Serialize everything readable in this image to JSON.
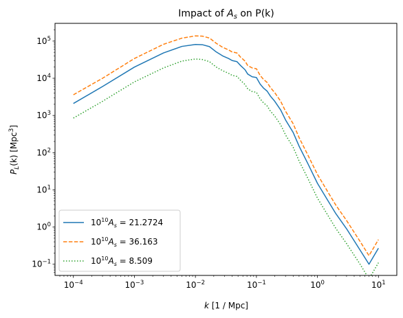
{
  "chart_data": {
    "type": "line",
    "title": {
      "prefix": "Impact of ",
      "sym": "A",
      "sub": "s",
      "suffix": " on P(k)"
    },
    "xlabel": {
      "sym": "k",
      "rest": " [1 / Mpc]"
    },
    "ylabel": {
      "sym": "P",
      "sub": "L",
      "mid": "(k) [Mpc",
      "sup": "3",
      "end": "]"
    },
    "x_scale": "log",
    "y_scale": "log",
    "xlim": [
      5e-05,
      20
    ],
    "ylim": [
      0.05,
      300000
    ],
    "x_ticks": [
      {
        "value": 0.0001,
        "base": "10",
        "exp": "−4"
      },
      {
        "value": 0.001,
        "base": "10",
        "exp": "−3"
      },
      {
        "value": 0.01,
        "base": "10",
        "exp": "−2"
      },
      {
        "value": 0.1,
        "base": "10",
        "exp": "−1"
      },
      {
        "value": 1,
        "base": "10",
        "exp": "0"
      },
      {
        "value": 10,
        "base": "10",
        "exp": "1"
      }
    ],
    "y_ticks": [
      {
        "value": 0.1,
        "base": "10",
        "exp": "−1"
      },
      {
        "value": 1,
        "base": "10",
        "exp": "0"
      },
      {
        "value": 10,
        "base": "10",
        "exp": "1"
      },
      {
        "value": 100,
        "base": "10",
        "exp": "2"
      },
      {
        "value": 1000,
        "base": "10",
        "exp": "3"
      },
      {
        "value": 10000,
        "base": "10",
        "exp": "4"
      },
      {
        "value": 100000,
        "base": "10",
        "exp": "5"
      }
    ],
    "grid": false,
    "legend_position": "lower-left",
    "series": [
      {
        "name": {
          "pre": "10",
          "sup": "10",
          "sym": "A",
          "sub": "s",
          "post": " = 21.2724"
        },
        "color": "#1f77b4",
        "dash": "solid",
        "x": [
          0.0001,
          0.0003,
          0.001,
          0.003,
          0.006,
          0.01,
          0.013,
          0.017,
          0.022,
          0.028,
          0.035,
          0.04,
          0.048,
          0.055,
          0.065,
          0.072,
          0.085,
          0.1,
          0.115,
          0.13,
          0.15,
          0.17,
          0.2,
          0.25,
          0.3,
          0.4,
          0.5,
          0.7,
          1,
          1.5,
          2,
          3,
          5,
          7,
          10
        ],
        "y": [
          2100,
          6000,
          20000,
          48000,
          72000,
          81000,
          80000,
          71000,
          51000,
          40000,
          34000,
          30000,
          28000,
          22000,
          17000,
          13000,
          11000,
          10500,
          7000,
          5500,
          4500,
          3300,
          2400,
          1400,
          760,
          350,
          150,
          50,
          15,
          5,
          2.3,
          0.9,
          0.24,
          0.1,
          0.27
        ]
      },
      {
        "name": {
          "pre": "10",
          "sup": "10",
          "sym": "A",
          "sub": "s",
          "post": " = 36.163"
        },
        "color": "#ff7f0e",
        "dash": "dashed",
        "x": [
          0.0001,
          0.0003,
          0.001,
          0.003,
          0.006,
          0.01,
          0.013,
          0.017,
          0.022,
          0.028,
          0.035,
          0.04,
          0.048,
          0.055,
          0.065,
          0.072,
          0.085,
          0.1,
          0.115,
          0.13,
          0.15,
          0.17,
          0.2,
          0.25,
          0.3,
          0.4,
          0.5,
          0.7,
          1,
          1.5,
          2,
          3,
          5,
          7,
          10
        ],
        "y": [
          3600,
          10000,
          34000,
          82000,
          120000,
          138000,
          136000,
          121000,
          87000,
          68000,
          58000,
          51000,
          48000,
          37000,
          29000,
          22000,
          19000,
          18000,
          12000,
          9400,
          7700,
          5600,
          4100,
          2400,
          1300,
          600,
          255,
          85,
          26,
          8.5,
          3.9,
          1.5,
          0.41,
          0.17,
          0.46
        ]
      },
      {
        "name": {
          "pre": "10",
          "sup": "10",
          "sym": "A",
          "sub": "s",
          "post": " = 8.509"
        },
        "color": "#2ca02c",
        "dash": "dotted",
        "x": [
          0.0001,
          0.0003,
          0.001,
          0.003,
          0.006,
          0.01,
          0.013,
          0.017,
          0.022,
          0.028,
          0.035,
          0.04,
          0.048,
          0.055,
          0.065,
          0.072,
          0.085,
          0.1,
          0.115,
          0.13,
          0.15,
          0.17,
          0.2,
          0.25,
          0.3,
          0.4,
          0.5,
          0.7,
          1,
          1.5,
          2,
          3,
          5,
          7,
          10
        ],
        "y": [
          850,
          2400,
          8000,
          19000,
          29000,
          33000,
          32000,
          28000,
          20000,
          16000,
          13600,
          12000,
          11200,
          8800,
          6800,
          5200,
          4400,
          4200,
          2800,
          2200,
          1800,
          1300,
          960,
          560,
          300,
          140,
          60,
          20,
          6,
          2,
          0.92,
          0.36,
          0.1,
          0.04,
          0.11
        ]
      }
    ]
  }
}
